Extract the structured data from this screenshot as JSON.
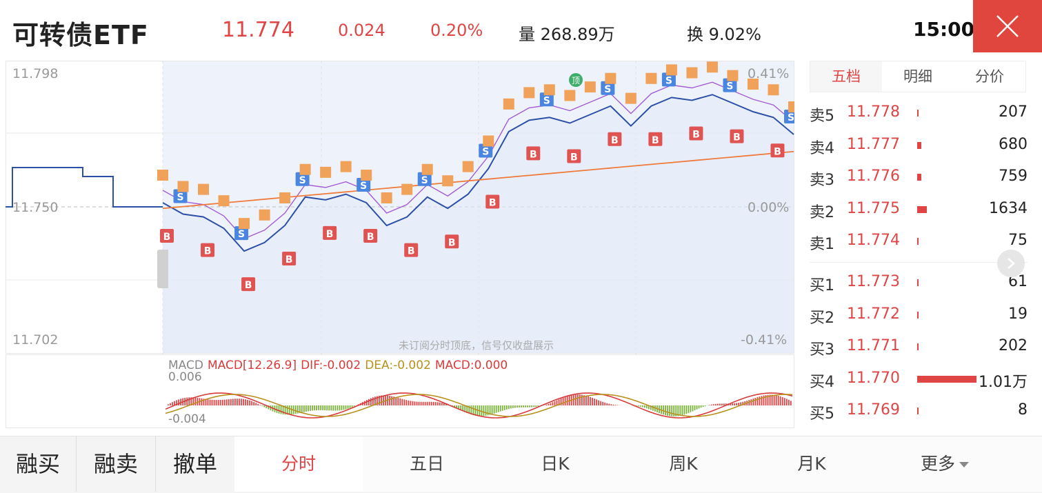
{
  "header": {
    "title": "可转债ETF",
    "price": "11.774",
    "change": "0.024",
    "change_pct": "0.20%",
    "volume_label": "量",
    "volume_value": "268.89万",
    "turnover_label": "换",
    "turnover_value": "9.02%",
    "time": "15:00"
  },
  "chart": {
    "y_top": "11.798",
    "y_mid": "11.750",
    "y_bottom": "11.702",
    "pct_top": "0.41%",
    "pct_mid": "0.00%",
    "pct_bottom": "-0.41%",
    "watermark": "未订阅分时顶底，信号仅收盘展示",
    "signal_buy": "B",
    "signal_sell": "S",
    "signal_top": "顶",
    "macd": {
      "title": "MACD",
      "params": "MACD[12.26.9]",
      "dif": "DIF:-0.002",
      "dea": "DEA:-0.002",
      "macd": "MACD:0.000",
      "y_top": "0.006",
      "y_bottom": "-0.004"
    }
  },
  "chart_data": {
    "type": "line",
    "title": "",
    "ylim": [
      11.702,
      11.798
    ],
    "pct_range": [
      "-0.41%",
      "0.41%"
    ],
    "ref_price": 11.75,
    "series": [
      {
        "values_approx": [
          11.75,
          11.746,
          11.745,
          11.741,
          11.733,
          11.736,
          11.742,
          11.752,
          11.751,
          11.753,
          11.75,
          11.742,
          11.745,
          11.752,
          11.748,
          11.753,
          11.762,
          11.775,
          11.779,
          11.78,
          11.778,
          11.781,
          11.784,
          11.777,
          11.784,
          11.787,
          11.786,
          11.788,
          11.785,
          11.782,
          11.78,
          11.774
        ]
      }
    ]
  },
  "orderbook": {
    "tabs": [
      "五档",
      "明细",
      "分价"
    ],
    "asks": [
      {
        "label": "卖5",
        "price": "11.778",
        "volume": "207",
        "bar": 0.02
      },
      {
        "label": "卖4",
        "price": "11.777",
        "volume": "680",
        "bar": 0.07
      },
      {
        "label": "卖3",
        "price": "11.776",
        "volume": "759",
        "bar": 0.07
      },
      {
        "label": "卖2",
        "price": "11.775",
        "volume": "1634",
        "bar": 0.16
      },
      {
        "label": "卖1",
        "price": "11.774",
        "volume": "75",
        "bar": 0.01
      }
    ],
    "bids": [
      {
        "label": "买1",
        "price": "11.773",
        "volume": "61",
        "bar": 0.01
      },
      {
        "label": "买2",
        "price": "11.772",
        "volume": "19",
        "bar": 0.005
      },
      {
        "label": "买3",
        "price": "11.771",
        "volume": "202",
        "bar": 0.02
      },
      {
        "label": "买4",
        "price": "11.770",
        "volume": "1.01万",
        "bar": 1.0
      },
      {
        "label": "买5",
        "price": "11.769",
        "volume": "8",
        "bar": 0.005
      }
    ]
  },
  "bottom": {
    "buttons": [
      "融买",
      "融卖",
      "撤单"
    ],
    "tabs": [
      "分时",
      "五日",
      "日K",
      "周K",
      "月K",
      "更多"
    ]
  },
  "colors": {
    "up": "#e04545",
    "price_line": "#2c4fa8",
    "avg_line": "#ee7a3c",
    "ref_line": "#a45bd6",
    "macd_pos": "#e04545",
    "macd_neg": "#7bb33a"
  }
}
